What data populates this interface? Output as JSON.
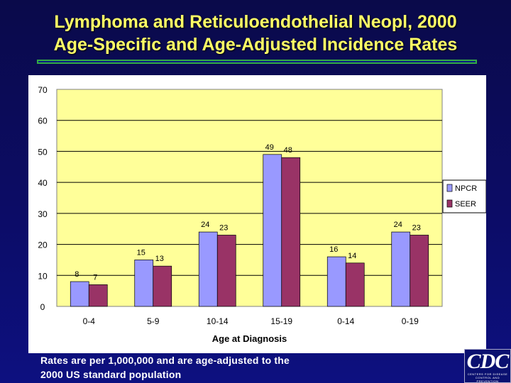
{
  "header": {
    "title_line1": "Lymphoma and Reticuloendothelial Neopl, 2000",
    "title_line2": "Age-Specific and Age-Adjusted Incidence Rates"
  },
  "footnote": {
    "line1": "Rates are per 1,000,000 and are age-adjusted to the",
    "line2": "2000 US standard population"
  },
  "logo": {
    "mark": "CDC",
    "line1": "CENTERS FOR DISEASE",
    "line2": "CONTROL AND PREVENTION"
  },
  "colors": {
    "npcr": "#9999ff",
    "seer": "#993366",
    "plot_background": "#ffff99",
    "title": "#ffff66"
  },
  "chart_data": {
    "type": "bar",
    "title": "",
    "xlabel": "Age at Diagnosis",
    "ylabel": "",
    "categories": [
      "0-4",
      "5-9",
      "10-14",
      "15-19",
      "0-14",
      "0-19"
    ],
    "series": [
      {
        "name": "NPCR",
        "values": [
          8,
          15,
          24,
          49,
          16,
          24
        ]
      },
      {
        "name": "SEER",
        "values": [
          7,
          13,
          23,
          48,
          14,
          23
        ]
      }
    ],
    "ylim": [
      0,
      70
    ],
    "yticks": [
      0,
      10,
      20,
      30,
      40,
      50,
      60,
      70
    ],
    "grid": "horizontal",
    "legend_position": "right"
  }
}
